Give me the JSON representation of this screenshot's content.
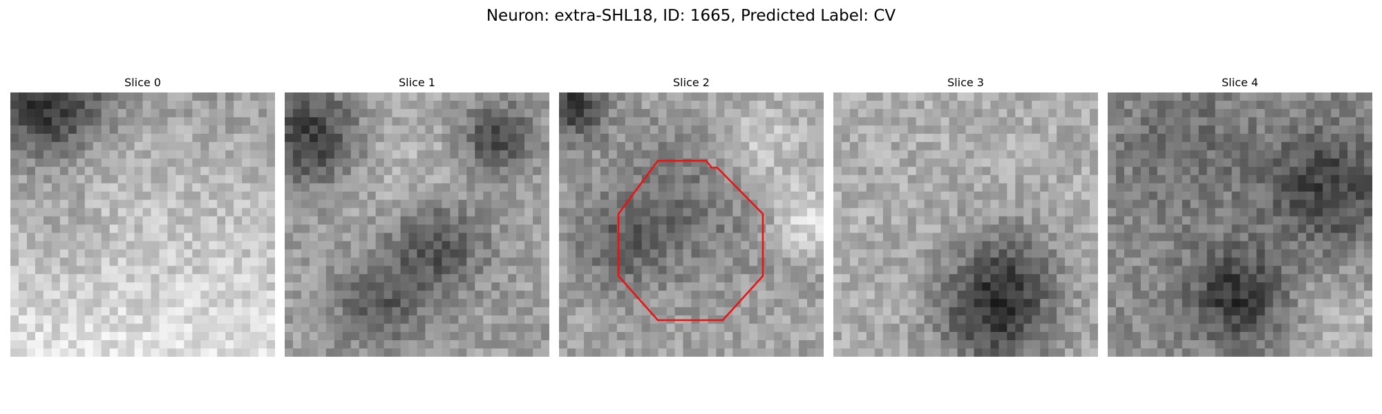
{
  "figure": {
    "title": "Neuron: extra-SHL18, ID: 1665, Predicted Label: CV"
  },
  "panels": [
    {
      "title": "Slice 0"
    },
    {
      "title": "Slice 1"
    },
    {
      "title": "Slice 2"
    },
    {
      "title": "Slice 3"
    },
    {
      "title": "Slice 4"
    }
  ],
  "overlay": {
    "slice_index": 2,
    "shape": "octagon outline",
    "color": "#ee1111"
  },
  "colormap": "grayscale"
}
